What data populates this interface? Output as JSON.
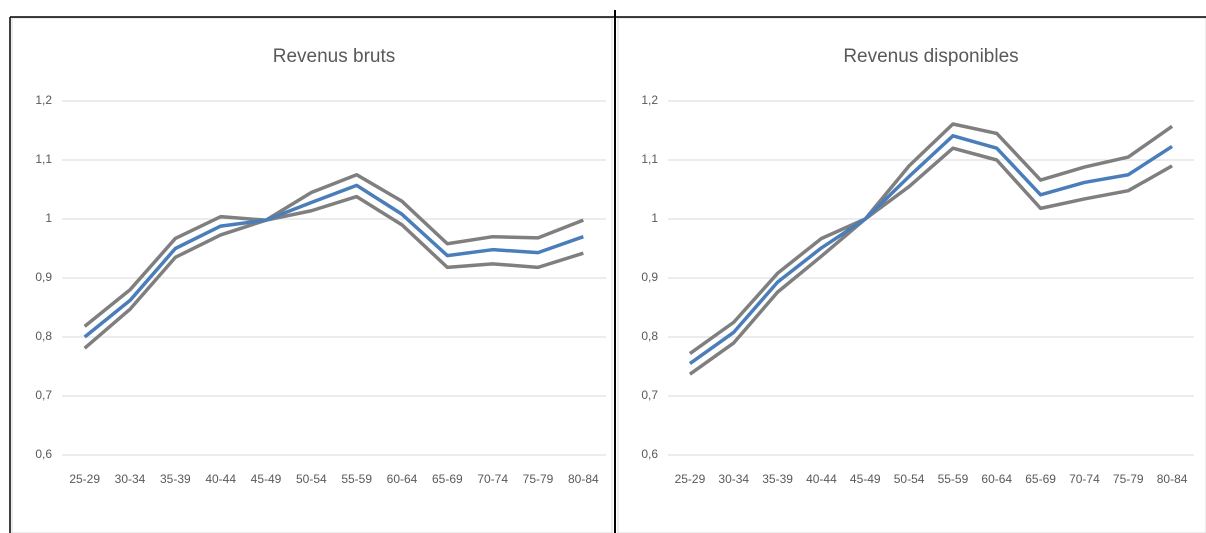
{
  "chart_data": [
    {
      "type": "line",
      "title": "Revenus bruts",
      "categories": [
        "25-29",
        "30-34",
        "35-39",
        "40-44",
        "45-49",
        "50-54",
        "55-59",
        "60-64",
        "65-69",
        "70-74",
        "75-79",
        "80-84"
      ],
      "series": [
        {
          "color": "#7f7f7f",
          "values": [
            0.818,
            0.88,
            0.967,
            1.004,
            0.998,
            1.045,
            1.075,
            1.03,
            0.958,
            0.97,
            0.968,
            0.998
          ]
        },
        {
          "color": "#7f7f7f",
          "values": [
            0.781,
            0.847,
            0.935,
            0.973,
            0.998,
            1.014,
            1.038,
            0.99,
            0.918,
            0.924,
            0.918,
            0.942
          ]
        },
        {
          "color": "#4a7ebb",
          "values": [
            0.8,
            0.862,
            0.95,
            0.988,
            0.998,
            1.028,
            1.057,
            1.008,
            0.938,
            0.948,
            0.943,
            0.97
          ]
        }
      ],
      "ylim": [
        0.6,
        1.2
      ],
      "yticks": [
        {
          "value": 0.6,
          "label": "0,6"
        },
        {
          "value": 0.7,
          "label": "0,7"
        },
        {
          "value": 0.8,
          "label": "0,8"
        },
        {
          "value": 0.9,
          "label": "0,9"
        },
        1,
        {
          "value": 1.1,
          "label": "1,1"
        },
        {
          "value": 1.2,
          "label": "1,2"
        }
      ],
      "grid": true
    },
    {
      "type": "line",
      "title": "Revenus disponibles",
      "categories": [
        "25-29",
        "30-34",
        "35-39",
        "40-44",
        "45-49",
        "50-54",
        "55-59",
        "60-64",
        "65-69",
        "70-74",
        "75-79",
        "80-84"
      ],
      "series": [
        {
          "color": "#7f7f7f",
          "values": [
            0.772,
            0.825,
            0.908,
            0.967,
            1.0,
            1.09,
            1.161,
            1.145,
            1.066,
            1.088,
            1.105,
            1.157
          ]
        },
        {
          "color": "#7f7f7f",
          "values": [
            0.737,
            0.79,
            0.876,
            0.937,
            1.0,
            1.055,
            1.12,
            1.1,
            1.018,
            1.034,
            1.048,
            1.09
          ]
        },
        {
          "color": "#4a7ebb",
          "values": [
            0.755,
            0.808,
            0.893,
            0.951,
            1.0,
            1.072,
            1.141,
            1.12,
            1.041,
            1.062,
            1.075,
            1.123
          ]
        }
      ],
      "ylim": [
        0.6,
        1.2
      ],
      "yticks": [
        {
          "value": 0.6,
          "label": "0,6"
        },
        {
          "value": 0.7,
          "label": "0,7"
        },
        {
          "value": 0.8,
          "label": "0,8"
        },
        {
          "value": 0.9,
          "label": "0,9"
        },
        1,
        {
          "value": 1.1,
          "label": "1,1"
        },
        {
          "value": 1.2,
          "label": "1,2"
        }
      ],
      "grid": true
    }
  ]
}
